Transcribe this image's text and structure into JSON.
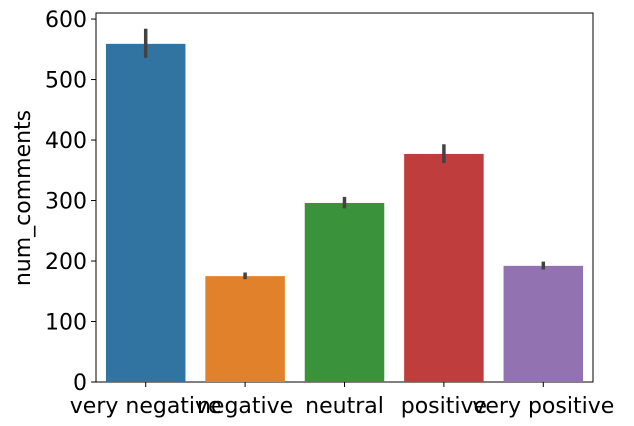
{
  "chart_data": {
    "type": "bar",
    "categories": [
      "very negative",
      "negative",
      "neutral",
      "positive",
      "very positive"
    ],
    "values": [
      559,
      175,
      296,
      377,
      192
    ],
    "error_bars": [
      [
        536,
        584
      ],
      [
        170,
        181
      ],
      [
        287,
        306
      ],
      [
        362,
        393
      ],
      [
        186,
        199
      ]
    ],
    "colors": [
      "#3274a1",
      "#e1812c",
      "#3a923a",
      "#c03d3e",
      "#9372b2"
    ],
    "error_color": "#424242",
    "xlabel": "",
    "ylabel": "num_comments",
    "ylim": [
      0,
      610
    ],
    "yticks": [
      0,
      100,
      200,
      300,
      400,
      500,
      600
    ],
    "grid": false
  }
}
